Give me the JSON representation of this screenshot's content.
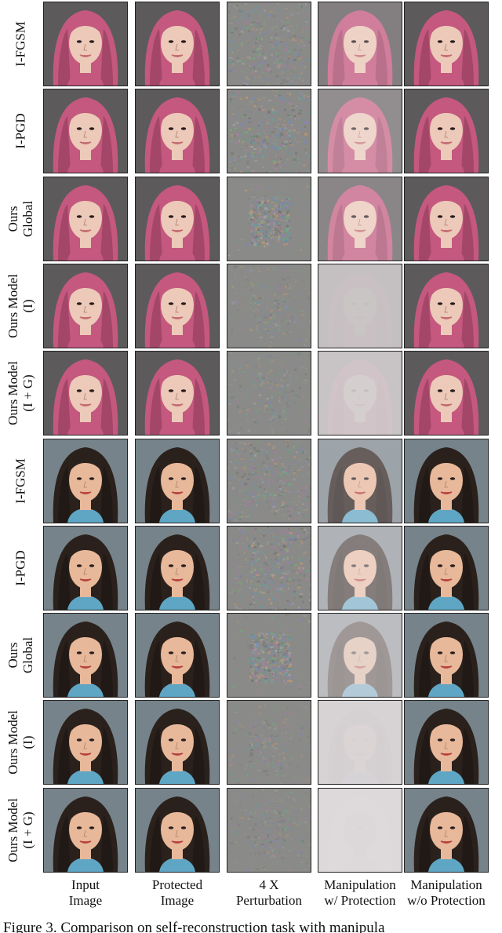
{
  "figure": {
    "caption": "Figure 3. Comparison on self-reconstruction task with manipula",
    "columns": [
      {
        "key": "input",
        "label": "Input\nImage"
      },
      {
        "key": "protected",
        "label": "Protected\nImage"
      },
      {
        "key": "perturbation",
        "label": "4 X\nPerturbation"
      },
      {
        "key": "manip_with",
        "label": "Manipulation\nw/ Protection"
      },
      {
        "key": "manip_without",
        "label": "Manipulation\nw/o Protection"
      }
    ],
    "rows": [
      {
        "label": "I-FGSM",
        "subject": "pink-hair-woman",
        "pert_strength": 0.55,
        "pert_center": 0.15,
        "with_wash": 0.25,
        "with_inverted": 0.0
      },
      {
        "label": "I-PGD",
        "subject": "pink-hair-woman",
        "pert_strength": 0.75,
        "pert_center": 0.2,
        "with_wash": 0.35,
        "with_inverted": 0.0
      },
      {
        "label": "Ours\nGlobal",
        "subject": "pink-hair-woman",
        "pert_strength": 0.8,
        "pert_center": 0.9,
        "with_wash": 0.3,
        "with_inverted": 0.0
      },
      {
        "label": "Ours Model\n(I)",
        "subject": "pink-hair-woman",
        "pert_strength": 0.25,
        "pert_center": 0.5,
        "with_wash": 0.6,
        "with_inverted": 0.6
      },
      {
        "label": "Ours Model\n(I + G)",
        "subject": "pink-hair-woman",
        "pert_strength": 0.25,
        "pert_center": 0.45,
        "with_wash": 0.65,
        "with_inverted": 0.5
      },
      {
        "label": "I-FGSM",
        "subject": "dark-hair-woman",
        "pert_strength": 0.55,
        "pert_center": 0.15,
        "with_wash": 0.3,
        "with_inverted": 0.0
      },
      {
        "label": "I-PGD",
        "subject": "dark-hair-woman",
        "pert_strength": 0.75,
        "pert_center": 0.2,
        "with_wash": 0.45,
        "with_inverted": 0.0
      },
      {
        "label": "Ours\nGlobal",
        "subject": "dark-hair-woman",
        "pert_strength": 0.8,
        "pert_center": 0.9,
        "with_wash": 0.55,
        "with_inverted": 0.1
      },
      {
        "label": "Ours Model\n(I)",
        "subject": "dark-hair-woman",
        "pert_strength": 0.25,
        "pert_center": 0.5,
        "with_wash": 0.75,
        "with_inverted": 0.6
      },
      {
        "label": "Ours Model\n(I + G)",
        "subject": "dark-hair-woman",
        "pert_strength": 0.25,
        "pert_center": 0.45,
        "with_wash": 0.8,
        "with_inverted": 0.7
      }
    ],
    "palettes": {
      "pink-hair-woman": {
        "bg": "#5d5a5c",
        "hair": "#c4587e",
        "hair_dark": "#8e3a5a",
        "skin": "#ecc9b8",
        "lips": "#c46c72",
        "shirt": "#c4587e"
      },
      "dark-hair-woman": {
        "bg": "#76838a",
        "hair": "#2b211c",
        "hair_dark": "#1a1411",
        "skin": "#e8b89a",
        "lips": "#b8443f",
        "shirt": "#5ea6c4"
      }
    }
  }
}
